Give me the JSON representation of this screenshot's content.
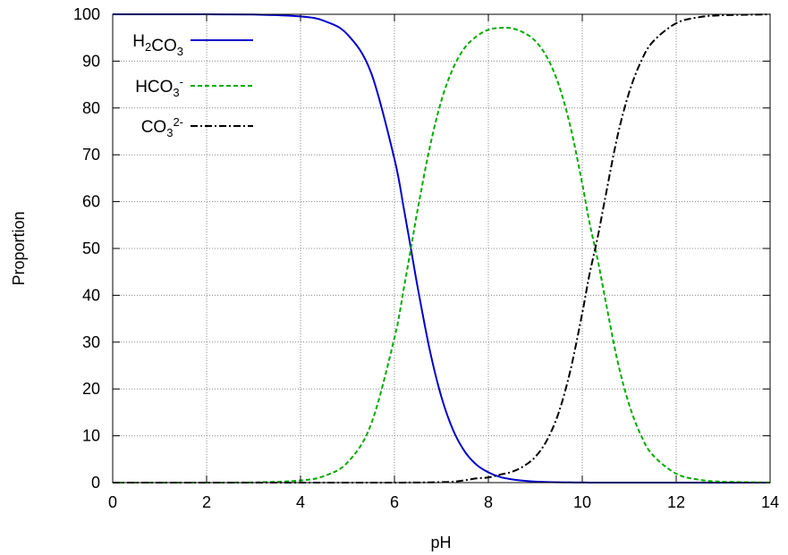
{
  "chart_data": {
    "type": "line",
    "title": "",
    "xlabel": "pH",
    "ylabel": "Proportion",
    "xlim": [
      0,
      14
    ],
    "ylim": [
      0,
      100
    ],
    "xticks": [
      "0",
      "2",
      "4",
      "6",
      "8",
      "10",
      "12",
      "14"
    ],
    "yticks": [
      "0",
      "10",
      "20",
      "30",
      "40",
      "50",
      "60",
      "70",
      "80",
      "90",
      "100"
    ],
    "grid": true,
    "legend_position": "top-left",
    "x": [
      0,
      1,
      2,
      3,
      4,
      4.5,
      5,
      5.5,
      6,
      6.2,
      6.35,
      6.5,
      6.75,
      7,
      7.25,
      7.5,
      7.75,
      8,
      8.25,
      8.5,
      8.75,
      9,
      9.25,
      9.5,
      9.75,
      10,
      10.15,
      10.33,
      10.5,
      10.75,
      11,
      11.25,
      11.5,
      12,
      12.5,
      13,
      14
    ],
    "series": [
      {
        "name": "H2CO3",
        "label_parts": [
          {
            "t": "H"
          },
          {
            "t": "2",
            "sub": true
          },
          {
            "t": "CO"
          },
          {
            "t": "3",
            "sub": true
          }
        ],
        "color": "#0000cc",
        "style": "solid",
        "values": [
          100,
          100,
          99.99,
          99.96,
          99.55,
          98.6,
          95.7,
          87.6,
          69.1,
          58.5,
          50.0,
          41.4,
          28.4,
          18.3,
          11.2,
          6.6,
          3.8,
          2.2,
          1.2,
          0.7,
          0.4,
          0.22,
          0.12,
          0.07,
          0.04,
          0.02,
          0.01,
          0.01,
          0,
          0,
          0,
          0,
          0,
          0,
          0,
          0,
          0
        ]
      },
      {
        "name": "HCO3-",
        "label_parts": [
          {
            "t": "HCO"
          },
          {
            "t": "3",
            "sub": true
          },
          {
            "t": "-",
            "sup": true
          }
        ],
        "color": "#00aa00",
        "style": "dashed",
        "values": [
          0,
          0.01,
          0.01,
          0.04,
          0.45,
          1.4,
          4.3,
          12.4,
          30.9,
          41.5,
          50.0,
          58.6,
          71.5,
          81.6,
          88.5,
          92.9,
          95.3,
          96.7,
          97.1,
          97.0,
          96.1,
          94.3,
          90.8,
          84.9,
          75.9,
          63.8,
          55.7,
          47.5,
          38.6,
          26.0,
          16.6,
          10.1,
          5.9,
          1.9,
          0.6,
          0.2,
          0.02
        ]
      },
      {
        "name": "CO32-",
        "label_parts": [
          {
            "t": "CO"
          },
          {
            "t": "3",
            "sub": true
          },
          {
            "t": "2-",
            "sup": true
          }
        ],
        "color": "#000000",
        "style": "dashdot",
        "values": [
          0,
          0,
          0,
          0,
          0,
          0,
          0,
          0,
          0.01,
          0.01,
          0.02,
          0.03,
          0.06,
          0.1,
          0.2,
          0.5,
          0.9,
          1.1,
          1.7,
          2.3,
          3.5,
          5.5,
          9.1,
          15.0,
          24.1,
          36.2,
          44.3,
          52.5,
          61.4,
          74.0,
          83.4,
          89.9,
          94.1,
          98.1,
          99.4,
          99.8,
          99.98
        ]
      }
    ]
  }
}
